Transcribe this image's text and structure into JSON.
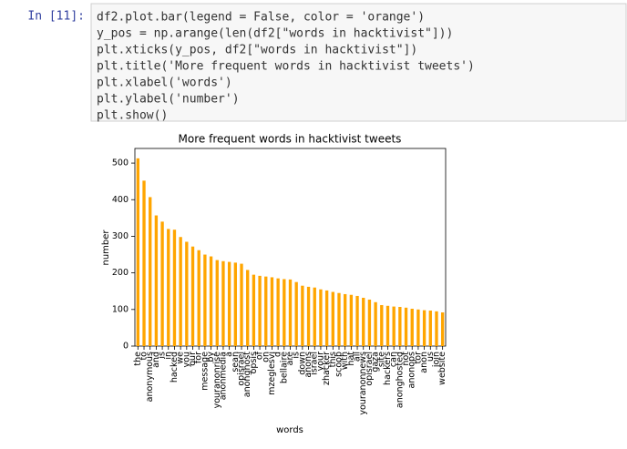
{
  "prompt": "In [11]:",
  "code": [
    "df2.plot.bar(legend = False, color = 'orange')",
    "y_pos = np.arange(len(df2[\"words in hacktivist\"]))",
    "plt.xticks(y_pos, df2[\"words in hacktivist\"])",
    "plt.title('More frequent words in hacktivist tweets')",
    "plt.xlabel('words')",
    "plt.ylabel('number')",
    "plt.show()"
  ],
  "chart_data": {
    "type": "bar",
    "title": "More frequent words in hacktivist tweets",
    "x_label": "words",
    "y_label": "number",
    "color": "#ffa500",
    "categories": [
      "the",
      "to",
      "anonymous",
      "and",
      "is",
      "in",
      "hacked",
      "we",
      "you",
      "our",
      "for",
      "message",
      "by",
      "youranonrise",
      "anonmedia",
      "a",
      "sean",
      "opisrael",
      "anonghost",
      "opsis",
      "of",
      "on",
      "mzeglesvi",
      "d",
      "bellaire",
      "are",
      "is",
      "down",
      "anons",
      "israel",
      "your",
      "zhacker",
      "this",
      "scoob",
      "with",
      "hat",
      "all",
      "youranonnews",
      "opisrael",
      "gaza",
      "site",
      "hackers",
      "can",
      "anonghosted",
      "not",
      "anonops",
      "tor",
      "anon",
      "us",
      "join",
      "website"
    ],
    "values": [
      513,
      452,
      407,
      357,
      340,
      320,
      318,
      298,
      285,
      272,
      262,
      250,
      245,
      235,
      232,
      230,
      228,
      225,
      208,
      195,
      192,
      190,
      188,
      185,
      183,
      182,
      175,
      165,
      162,
      160,
      155,
      152,
      148,
      145,
      142,
      140,
      137,
      132,
      127,
      120,
      112,
      110,
      108,
      107,
      105,
      102,
      100,
      98,
      97,
      95,
      92
    ],
    "ylim": [
      0,
      540
    ],
    "yticks": [
      0,
      100,
      200,
      300,
      400,
      500
    ],
    "grid": false
  }
}
